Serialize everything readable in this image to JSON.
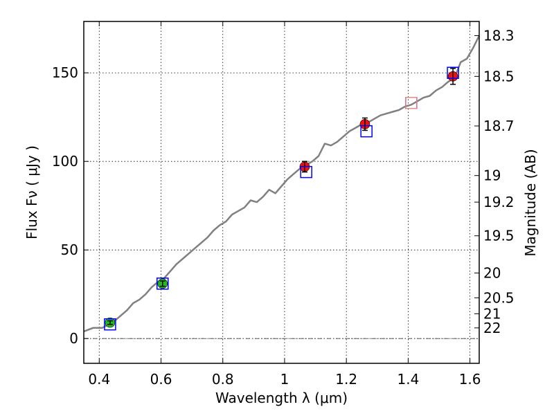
{
  "chart_data": {
    "type": "scatter",
    "xlabel": "Wavelength  λ (μm)",
    "ylabel": "Flux  Fν  ( μJy )",
    "ylabel_right": "Magnitude (AB)",
    "xlim": [
      0.35,
      1.63
    ],
    "ylim": [
      -14,
      179
    ],
    "grid": true,
    "x_ticks": [
      0.4,
      0.6,
      0.8,
      1.0,
      1.2,
      1.4,
      1.6
    ],
    "x_tick_labels": [
      "0.4",
      "0.6",
      "0.8",
      "1",
      "1.2",
      "1.4",
      "1.6"
    ],
    "y_ticks": [
      0,
      50,
      100,
      150
    ],
    "y_tick_labels": [
      "0",
      "50",
      "100",
      "150"
    ],
    "right_axis_ticks": [
      {
        "label": "18.3",
        "flux": 171
      },
      {
        "label": "18.5",
        "flux": 148
      },
      {
        "label": "18.7",
        "flux": 120
      },
      {
        "label": "19",
        "flux": 92
      },
      {
        "label": "19.2",
        "flux": 77
      },
      {
        "label": "19.5",
        "flux": 58
      },
      {
        "label": "20",
        "flux": 37
      },
      {
        "label": "20.5",
        "flux": 23
      },
      {
        "label": "21",
        "flux": 14
      },
      {
        "label": "22",
        "flux": 6
      }
    ],
    "model_spectrum": {
      "color": "#808080",
      "x": [
        0.35,
        0.38,
        0.41,
        0.43,
        0.45,
        0.47,
        0.49,
        0.51,
        0.53,
        0.55,
        0.57,
        0.59,
        0.61,
        0.63,
        0.65,
        0.67,
        0.69,
        0.71,
        0.73,
        0.75,
        0.77,
        0.79,
        0.81,
        0.83,
        0.85,
        0.87,
        0.89,
        0.91,
        0.93,
        0.95,
        0.97,
        0.99,
        1.01,
        1.03,
        1.05,
        1.07,
        1.09,
        1.11,
        1.13,
        1.15,
        1.17,
        1.19,
        1.21,
        1.23,
        1.25,
        1.27,
        1.29,
        1.31,
        1.33,
        1.35,
        1.37,
        1.39,
        1.41,
        1.43,
        1.45,
        1.47,
        1.49,
        1.51,
        1.53,
        1.55,
        1.57,
        1.59,
        1.61,
        1.63
      ],
      "y": [
        4,
        6,
        6,
        8,
        10,
        13,
        16,
        20,
        22,
        25,
        29,
        32,
        34,
        38,
        42,
        45,
        48,
        51,
        54,
        57,
        61,
        64,
        66,
        70,
        72,
        74,
        78,
        77,
        80,
        84,
        82,
        86,
        90,
        93,
        96,
        98,
        100,
        103,
        110,
        109,
        111,
        114,
        117,
        119,
        121,
        122,
        124,
        126,
        127,
        128,
        129,
        131,
        132,
        134,
        136,
        137,
        140,
        142,
        145,
        147,
        156,
        158,
        164,
        171
      ]
    },
    "series": [
      {
        "marker": "circle",
        "color": "#22bb22",
        "x": [
          0.435,
          0.605
        ],
        "y": [
          9,
          31
        ],
        "yerr": [
          1.0,
          1.5
        ]
      },
      {
        "marker": "circle",
        "color": "#ee1111",
        "x": [
          1.065,
          1.26,
          1.545
        ],
        "y": [
          97,
          121,
          148
        ],
        "yerr": [
          3,
          3.5,
          4.5
        ]
      },
      {
        "marker": "open-square",
        "color": "#0000ff",
        "x": [
          0.435,
          0.605,
          1.07,
          1.265,
          1.41,
          1.545
        ],
        "y": [
          8,
          31,
          94,
          117,
          133,
          150
        ]
      },
      {
        "marker": "open-square",
        "color": "#ee8888",
        "x": [
          1.41
        ],
        "y": [
          133
        ]
      }
    ]
  }
}
